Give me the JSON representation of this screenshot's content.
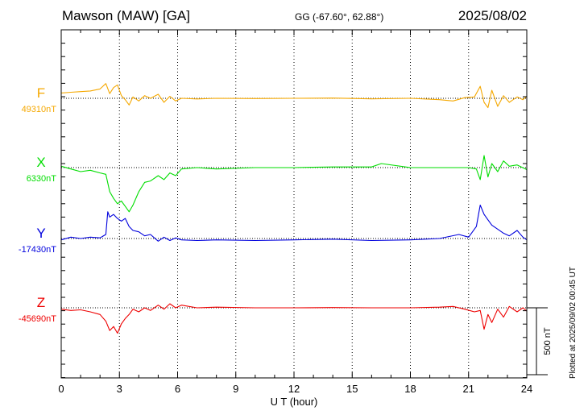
{
  "header": {
    "station": "Mawson (MAW)  [GA]",
    "coords": "GG (-67.60°,  62.88°)",
    "date": "2025/08/02"
  },
  "side_note": "Plotted at 2025/09/02 00:45 UT",
  "chart_data": {
    "type": "line",
    "title": "Mawson (MAW)  [GA]",
    "xlabel": "U T (hour)",
    "xlim": [
      0,
      24
    ],
    "xticks": [
      0,
      3,
      6,
      9,
      12,
      15,
      18,
      21,
      24
    ],
    "scale_bar": {
      "label": "500 nT",
      "nT": 500
    },
    "grid": "vertical dotted every 3 h",
    "series": [
      {
        "name": "F",
        "baseline_label": "49310nT",
        "color": "#f5a800",
        "x": [
          0,
          0.5,
          1,
          1.5,
          2.0,
          2.3,
          2.5,
          2.7,
          2.9,
          3.1,
          3.3,
          3.5,
          3.7,
          4.0,
          4.3,
          4.6,
          5.0,
          5.3,
          5.6,
          5.9,
          6.2,
          7,
          8,
          10,
          12,
          14,
          16,
          18,
          19.5,
          20.2,
          20.8,
          21.3,
          21.6,
          21.8,
          22.0,
          22.2,
          22.5,
          22.8,
          23.1,
          23.5,
          23.8,
          24
        ],
        "y": [
          49350,
          49355,
          49360,
          49365,
          49380,
          49420,
          49345,
          49390,
          49410,
          49330,
          49300,
          49260,
          49320,
          49290,
          49330,
          49310,
          49340,
          49280,
          49325,
          49290,
          49310,
          49305,
          49310,
          49308,
          49310,
          49312,
          49306,
          49310,
          49300,
          49290,
          49315,
          49320,
          49400,
          49280,
          49240,
          49370,
          49250,
          49330,
          49280,
          49320,
          49300,
          49325
        ]
      },
      {
        "name": "X",
        "baseline_label": "6330nT",
        "color": "#00dd00",
        "x": [
          0,
          0.5,
          1,
          1.5,
          2.0,
          2.3,
          2.5,
          2.7,
          2.9,
          3.1,
          3.3,
          3.5,
          3.7,
          4.0,
          4.3,
          4.6,
          5.0,
          5.3,
          5.6,
          5.9,
          6.2,
          7,
          8,
          10,
          12,
          14,
          16,
          16.5,
          18,
          20,
          21.0,
          21.4,
          21.6,
          21.8,
          22.0,
          22.2,
          22.5,
          22.8,
          23.1,
          23.5,
          24
        ],
        "y": [
          6340,
          6320,
          6300,
          6310,
          6290,
          6280,
          6150,
          6100,
          6060,
          6080,
          6040,
          6000,
          6050,
          6150,
          6220,
          6230,
          6270,
          6240,
          6290,
          6270,
          6320,
          6330,
          6320,
          6330,
          6330,
          6335,
          6335,
          6360,
          6330,
          6330,
          6330,
          6320,
          6240,
          6420,
          6260,
          6360,
          6300,
          6380,
          6340,
          6350,
          6315
        ]
      },
      {
        "name": "Y",
        "baseline_label": "-17430nT",
        "color": "#0000dd",
        "x": [
          0,
          0.5,
          1,
          1.5,
          2.0,
          2.3,
          2.4,
          2.5,
          2.7,
          2.9,
          3.1,
          3.3,
          3.5,
          3.7,
          4.0,
          4.3,
          4.6,
          5.0,
          5.3,
          5.6,
          5.9,
          6.2,
          7,
          8,
          10,
          12,
          14,
          16,
          18,
          19.5,
          20.5,
          21.0,
          21.4,
          21.6,
          21.8,
          22.0,
          22.2,
          22.5,
          22.8,
          23.1,
          23.5,
          23.8,
          24
        ],
        "y": [
          -17440,
          -17420,
          -17430,
          -17420,
          -17425,
          -17400,
          -17230,
          -17270,
          -17250,
          -17280,
          -17300,
          -17280,
          -17340,
          -17370,
          -17380,
          -17410,
          -17400,
          -17450,
          -17420,
          -17445,
          -17425,
          -17440,
          -17445,
          -17440,
          -17445,
          -17440,
          -17435,
          -17445,
          -17440,
          -17430,
          -17400,
          -17420,
          -17340,
          -17180,
          -17250,
          -17290,
          -17330,
          -17360,
          -17390,
          -17410,
          -17370,
          -17420,
          -17440
        ]
      },
      {
        "name": "Z",
        "baseline_label": "-45690nT",
        "color": "#ee0000",
        "x": [
          0,
          0.5,
          1,
          1.5,
          2.0,
          2.3,
          2.5,
          2.7,
          2.9,
          3.1,
          3.3,
          3.5,
          3.7,
          4.0,
          4.3,
          4.6,
          5.0,
          5.3,
          5.6,
          5.9,
          6.2,
          7,
          8,
          10,
          12,
          14,
          16,
          18,
          19.5,
          20.2,
          20.8,
          21.3,
          21.6,
          21.8,
          22.0,
          22.2,
          22.5,
          22.8,
          23.1,
          23.5,
          23.8,
          24
        ],
        "y": [
          -45700,
          -45710,
          -45705,
          -45720,
          -45740,
          -45790,
          -45860,
          -45830,
          -45880,
          -45810,
          -45770,
          -45740,
          -45700,
          -45720,
          -45690,
          -45710,
          -45670,
          -45700,
          -45660,
          -45690,
          -45670,
          -45690,
          -45685,
          -45690,
          -45690,
          -45688,
          -45690,
          -45690,
          -45685,
          -45680,
          -45700,
          -45720,
          -45710,
          -45850,
          -45740,
          -45800,
          -45700,
          -45760,
          -45680,
          -45720,
          -45690,
          -45715
        ]
      }
    ]
  }
}
